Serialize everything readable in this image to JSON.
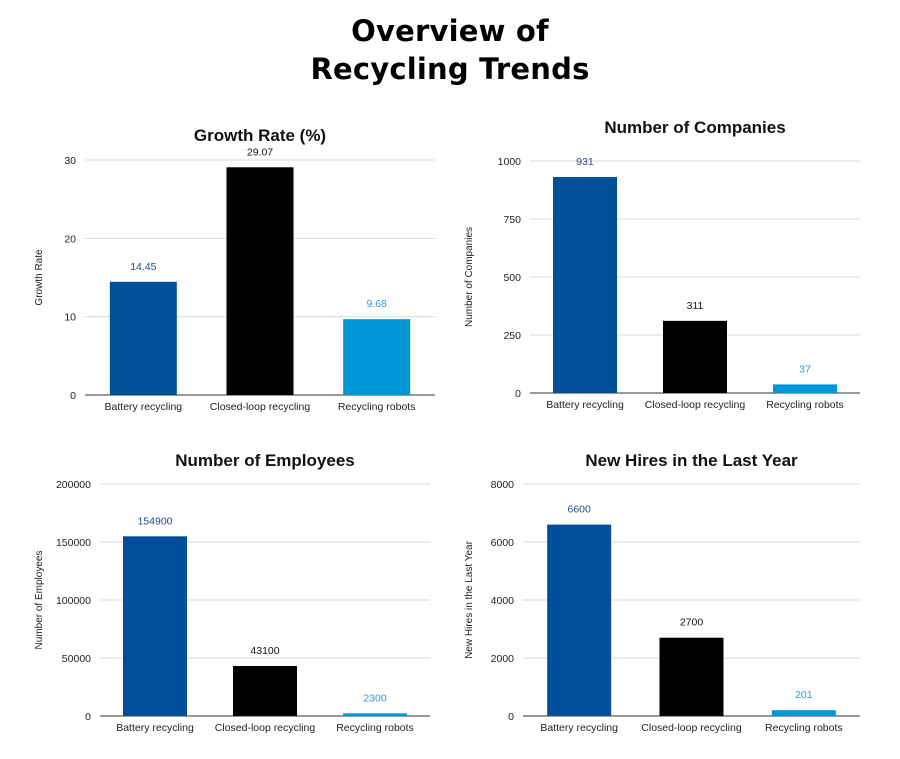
{
  "page": {
    "title_line1": "Overview of",
    "title_line2": "Recycling Trends"
  },
  "colors": {
    "Battery recycling": "#004f9b",
    "Closed-loop recycling": "#000000",
    "Recycling robots": "#0097d8",
    "label_battery": "#1d4f91",
    "label_closed": "#111111",
    "label_robots": "#2f9ad6"
  },
  "chart_data": [
    {
      "type": "bar",
      "title": "Growth Rate (%)",
      "xlabel": "",
      "ylabel": "Growth Rate",
      "categories": [
        "Battery recycling",
        "Closed-loop recycling",
        "Recycling robots"
      ],
      "values": [
        14.45,
        29.07,
        9.68
      ],
      "value_labels": [
        "14.45",
        "29.07",
        "9.68"
      ],
      "ylim": [
        0,
        30
      ],
      "yticks": [
        0,
        10,
        20,
        30
      ],
      "ytick_labels": [
        "0",
        "10",
        "20",
        "30"
      ],
      "grid": true,
      "legend": "none"
    },
    {
      "type": "bar",
      "title": "Number of Companies",
      "xlabel": "",
      "ylabel": "Number of Companies",
      "categories": [
        "Battery recycling",
        "Closed-loop recycling",
        "Recycling robots"
      ],
      "values": [
        931,
        311,
        37
      ],
      "value_labels": [
        "931",
        "311",
        "37"
      ],
      "ylim": [
        0,
        1000
      ],
      "yticks": [
        0,
        250,
        500,
        750,
        1000
      ],
      "ytick_labels": [
        "0",
        "250",
        "500",
        "750",
        "1000"
      ],
      "grid": true,
      "legend": "none"
    },
    {
      "type": "bar",
      "title": "Number of Employees",
      "xlabel": "",
      "ylabel": "Number of Employees",
      "categories": [
        "Battery recycling",
        "Closed-loop recycling",
        "Recycling robots"
      ],
      "values": [
        154900,
        43100,
        2300
      ],
      "value_labels": [
        "154900",
        "43100",
        "2300"
      ],
      "ylim": [
        0,
        200000
      ],
      "yticks": [
        0,
        50000,
        100000,
        150000,
        200000
      ],
      "ytick_labels": [
        "0",
        "50000",
        "100000",
        "150000",
        "200000"
      ],
      "grid": true,
      "legend": "none"
    },
    {
      "type": "bar",
      "title": "New Hires in the Last Year",
      "xlabel": "",
      "ylabel": "New Hires in the Last Year",
      "categories": [
        "Battery recycling",
        "Closed-loop recycling",
        "Recycling robots"
      ],
      "values": [
        6600,
        2700,
        201
      ],
      "value_labels": [
        "6600",
        "2700",
        "201"
      ],
      "ylim": [
        0,
        8000
      ],
      "yticks": [
        0,
        2000,
        4000,
        6000,
        8000
      ],
      "ytick_labels": [
        "0",
        "2000",
        "4000",
        "6000",
        "8000"
      ],
      "grid": true,
      "legend": "none"
    }
  ]
}
